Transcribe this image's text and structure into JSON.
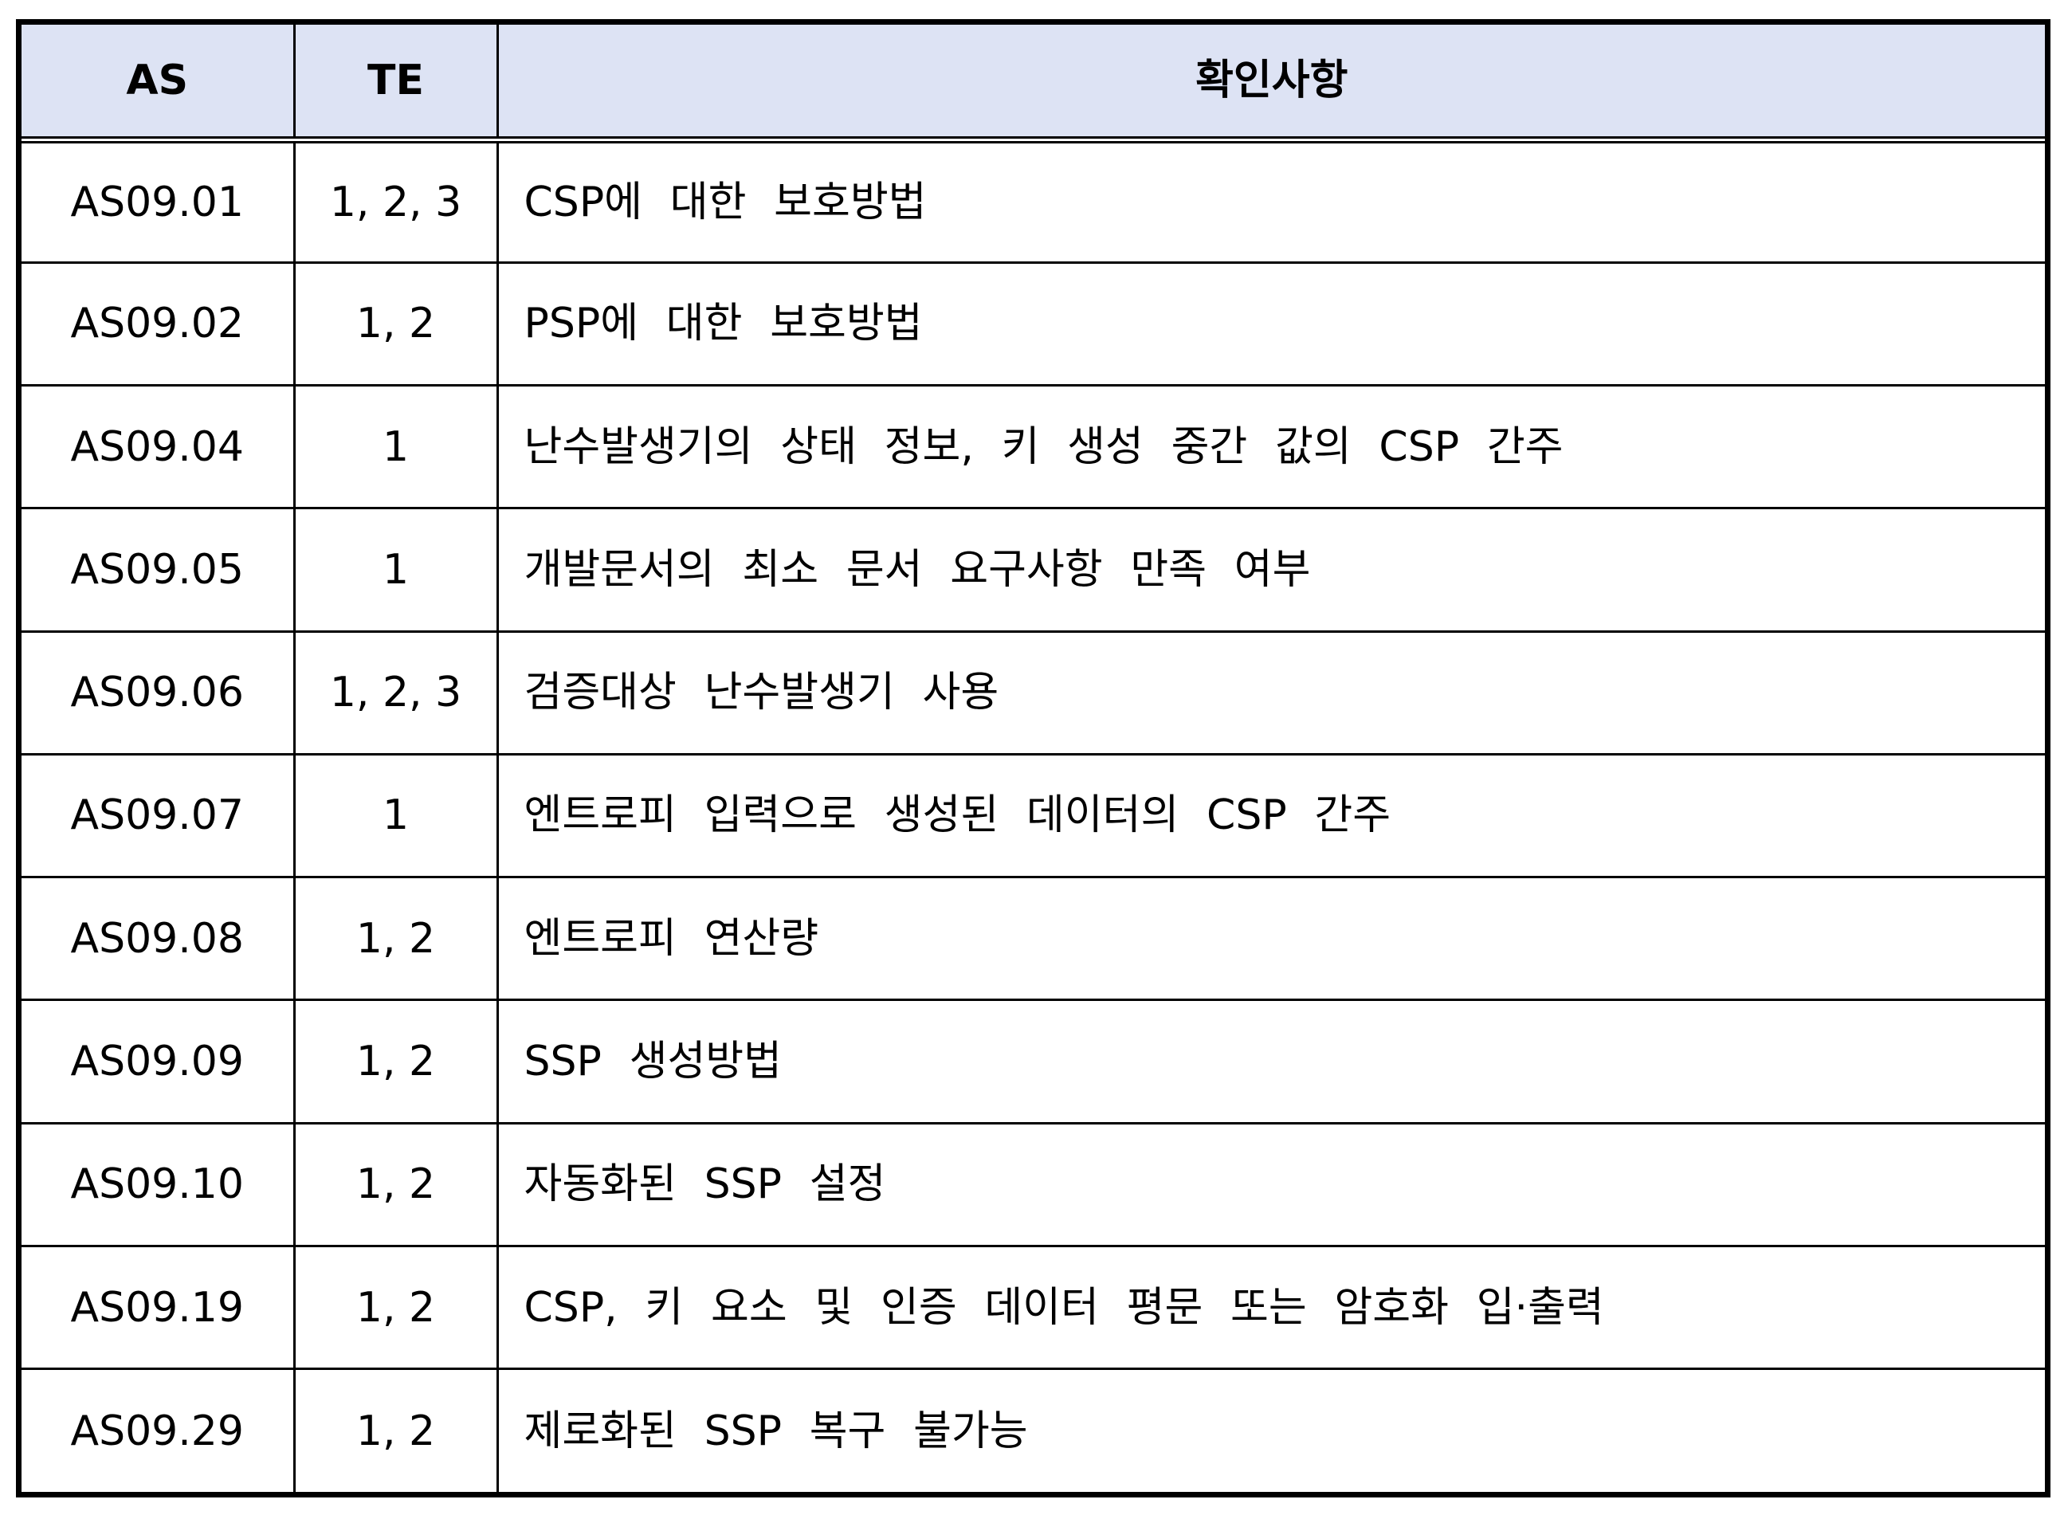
{
  "header": {
    "as": "AS",
    "te": "TE",
    "desc": "확인사항"
  },
  "rows": [
    {
      "as": "AS09.01",
      "te": "1, 2, 3",
      "desc": "CSP에 대한 보호방법"
    },
    {
      "as": "AS09.02",
      "te": "1, 2",
      "desc": "PSP에 대한 보호방법"
    },
    {
      "as": "AS09.04",
      "te": "1",
      "desc": "난수발생기의 상태 정보, 키 생성 중간 값의 CSP 간주"
    },
    {
      "as": "AS09.05",
      "te": "1",
      "desc": "개발문서의 최소 문서 요구사항 만족 여부"
    },
    {
      "as": "AS09.06",
      "te": "1, 2, 3",
      "desc": "검증대상 난수발생기 사용"
    },
    {
      "as": "AS09.07",
      "te": "1",
      "desc": "엔트로피 입력으로 생성된 데이터의 CSP 간주"
    },
    {
      "as": "AS09.08",
      "te": "1, 2",
      "desc": "엔트로피 연산량"
    },
    {
      "as": "AS09.09",
      "te": "1, 2",
      "desc": "SSP 생성방법"
    },
    {
      "as": "AS09.10",
      "te": "1, 2",
      "desc": "자동화된 SSP 설정"
    },
    {
      "as": "AS09.19",
      "te": "1, 2",
      "desc": "CSP, 키 요소 및 인증 데이터 평문 또는 암호화 입·출력"
    },
    {
      "as": "AS09.29",
      "te": "1, 2",
      "desc": "제로화된 SSP 복구 불가능"
    }
  ]
}
